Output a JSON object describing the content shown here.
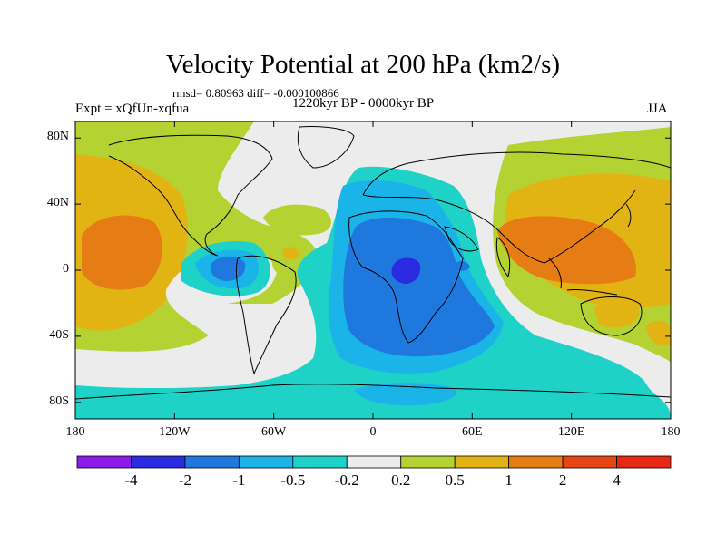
{
  "title": "Velocity Potential at 200 hPa (km2/s)",
  "stats": "rmsd= 0.80963 diff= -0.000100866",
  "experiment": "Expt = xQfUn-xqfua",
  "period": "1220kyr BP - 0000kyr BP",
  "season": "JJA",
  "map": {
    "lon_range": [
      -180,
      180
    ],
    "lat_range": [
      -90,
      90
    ],
    "lat_ticks": [
      {
        "label": "80N",
        "lat": 80
      },
      {
        "label": "40N",
        "lat": 40
      },
      {
        "label": "0",
        "lat": 0
      },
      {
        "label": "40S",
        "lat": -40
      },
      {
        "label": "80S",
        "lat": -80
      }
    ],
    "lon_ticks": [
      {
        "label": "180",
        "lon": -180
      },
      {
        "label": "120W",
        "lon": -120
      },
      {
        "label": "60W",
        "lon": -60
      },
      {
        "label": "0",
        "lon": 0
      },
      {
        "label": "60E",
        "lon": 60
      },
      {
        "label": "120E",
        "lon": 120
      },
      {
        "label": "180",
        "lon": 180
      }
    ]
  },
  "colorbar": {
    "colors": [
      "#8a1ce6",
      "#2a2ae0",
      "#1e78de",
      "#1ab4e8",
      "#1ed2c8",
      "#ececec",
      "#b4d232",
      "#e1b414",
      "#e67d14",
      "#e64614",
      "#e62814"
    ],
    "labels": [
      "-4",
      "-2",
      "-1",
      "-0.5",
      "-0.2",
      "0.2",
      "0.5",
      "1",
      "2",
      "4"
    ]
  },
  "colors": {
    "grey": "#ececec",
    "green": "#b4d232",
    "yellow": "#e1b414",
    "orange": "#e67d14",
    "teal": "#1ed2c8",
    "lightblue": "#1ab4e8",
    "blue": "#1e78de",
    "darkblue": "#2a2ae0"
  }
}
